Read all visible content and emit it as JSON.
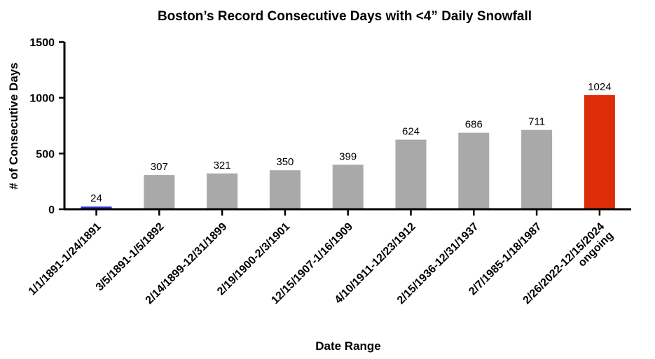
{
  "chart_data": {
    "type": "bar",
    "title": "Boston’s Record Consecutive Days with <4” Daily Snowfall",
    "xlabel": "Date Range",
    "ylabel": "# of Consecutive Days",
    "ylim": [
      0,
      1500
    ],
    "yticks": [
      0,
      500,
      1000,
      1500
    ],
    "grid": false,
    "categories": [
      [
        "1/1/1891-1/24/1891"
      ],
      [
        "3/5/1891-1/5/1892"
      ],
      [
        "2/14/1899-12/31/1899"
      ],
      [
        "2/19/1900-2/3/1901"
      ],
      [
        "12/15/1907-1/16/1909"
      ],
      [
        "4/10/1911-12/23/1912"
      ],
      [
        "2/15/1936-12/31/1937"
      ],
      [
        "2/7/1985-1/18/1987"
      ],
      [
        "2/26/2022-12/15/2024",
        "ongoing"
      ]
    ],
    "values": [
      24,
      307,
      321,
      350,
      399,
      624,
      686,
      711,
      1024
    ],
    "data_labels": [
      "24",
      "307",
      "321",
      "350",
      "399",
      "624",
      "686",
      "711",
      "1024"
    ],
    "colors": [
      "#2a35c8",
      "#a9a9a9",
      "#a9a9a9",
      "#a9a9a9",
      "#a9a9a9",
      "#a9a9a9",
      "#a9a9a9",
      "#a9a9a9",
      "#dd2c08"
    ]
  }
}
